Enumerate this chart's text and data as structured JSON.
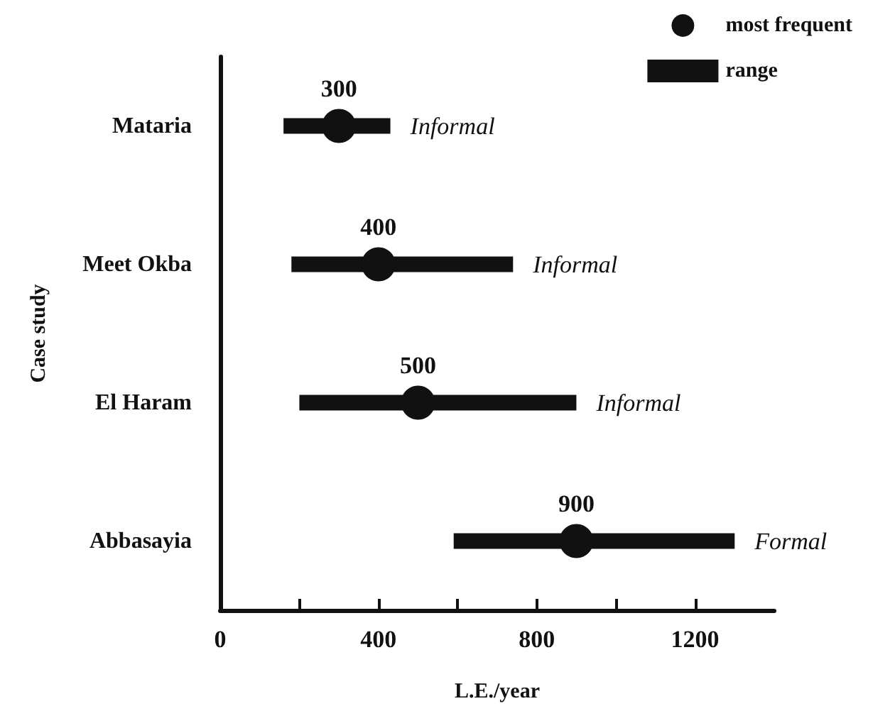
{
  "chart_data": {
    "type": "bar",
    "orientation": "horizontal",
    "xlabel": "L.E./year",
    "ylabel": "Case study",
    "categories": [
      "Mataria",
      "Meet Okba",
      "El Haram",
      "Abbasayia"
    ],
    "series": [
      {
        "name": "most frequent",
        "type": "scatter",
        "color": "#111111",
        "marker": "circle",
        "values": [
          300,
          400,
          500,
          900
        ],
        "value_labels": [
          "300",
          "400",
          "500",
          "900"
        ]
      },
      {
        "name": "range",
        "color": "#111111",
        "base": [
          160,
          180,
          200,
          590
        ],
        "values": [
          270,
          560,
          700,
          710
        ]
      }
    ],
    "xlim": [
      0,
      1400
    ],
    "xticks": [
      0,
      {
        "value": 200,
        "label": null
      },
      400,
      {
        "value": 600,
        "label": null
      },
      800,
      {
        "value": 1000,
        "label": null
      },
      1200
    ],
    "annotations": [
      {
        "text": "Informal",
        "x": 430,
        "y": "Mataria"
      },
      {
        "text": "Informal",
        "x": 740,
        "y": "Meet Okba"
      },
      {
        "text": "Informal",
        "x": 900,
        "y": "El Haram"
      },
      {
        "text": "Formal",
        "x": 1300,
        "y": "Abbasayia"
      }
    ],
    "grid": false,
    "legend": "top right"
  }
}
